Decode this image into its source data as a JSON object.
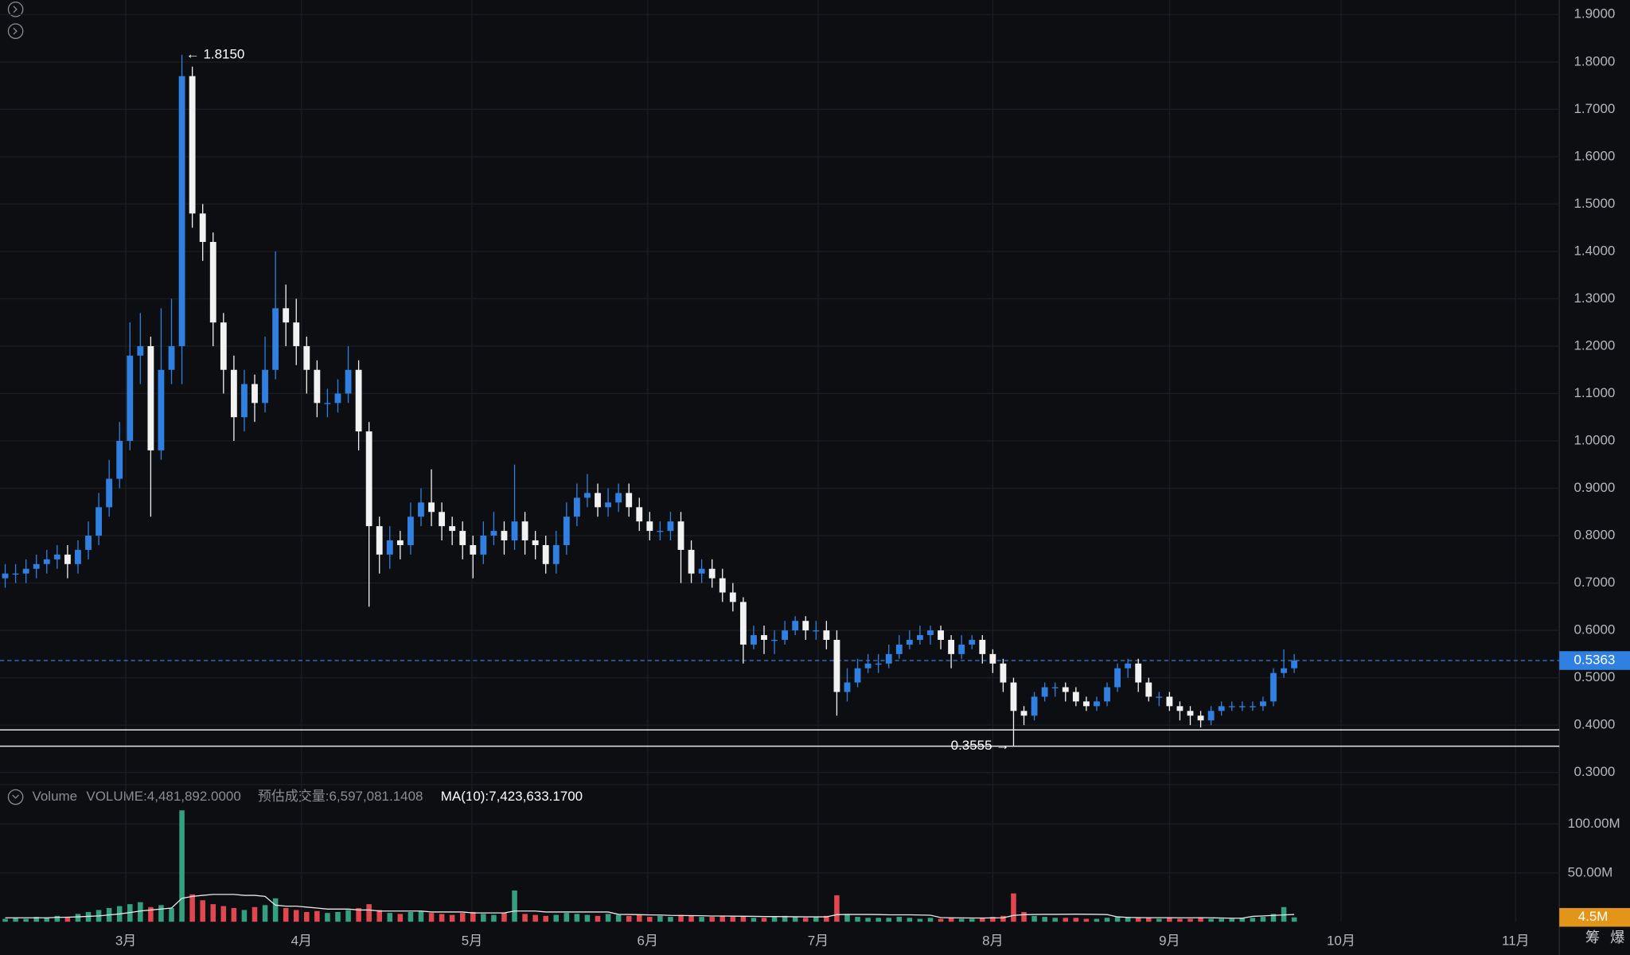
{
  "chart_data": [
    {
      "type": "candlestick",
      "open": [
        0.71,
        0.72,
        0.72,
        0.73,
        0.74,
        0.75,
        0.76,
        0.74,
        0.77,
        0.8,
        0.86,
        0.92,
        1.0,
        1.18,
        1.2,
        0.98,
        1.15,
        1.2,
        1.77,
        1.48,
        1.42,
        1.25,
        1.15,
        1.05,
        1.12,
        1.08,
        1.15,
        1.28,
        1.25,
        1.2,
        1.15,
        1.08,
        1.08,
        1.1,
        1.15,
        1.02,
        0.82,
        0.76,
        0.79,
        0.78,
        0.84,
        0.87,
        0.85,
        0.82,
        0.81,
        0.78,
        0.76,
        0.8,
        0.81,
        0.79,
        0.83,
        0.79,
        0.78,
        0.74,
        0.78,
        0.84,
        0.88,
        0.89,
        0.86,
        0.87,
        0.89,
        0.86,
        0.83,
        0.81,
        0.81,
        0.83,
        0.77,
        0.72,
        0.73,
        0.71,
        0.68,
        0.66,
        0.57,
        0.59,
        0.58,
        0.58,
        0.6,
        0.62,
        0.6,
        0.6,
        0.58,
        0.47,
        0.49,
        0.52,
        0.53,
        0.53,
        0.55,
        0.57,
        0.58,
        0.59,
        0.6,
        0.58,
        0.55,
        0.57,
        0.58,
        0.55,
        0.53,
        0.49,
        0.43,
        0.42,
        0.46,
        0.48,
        0.48,
        0.47,
        0.45,
        0.44,
        0.45,
        0.48,
        0.52,
        0.53,
        0.49,
        0.46,
        0.46,
        0.44,
        0.43,
        0.42,
        0.41,
        0.43,
        0.44,
        0.44,
        0.44,
        0.44,
        0.45,
        0.51,
        0.52
      ],
      "high": [
        0.74,
        0.74,
        0.75,
        0.76,
        0.77,
        0.78,
        0.78,
        0.79,
        0.83,
        0.89,
        0.96,
        1.04,
        1.25,
        1.27,
        1.22,
        1.28,
        1.3,
        1.815,
        1.79,
        1.5,
        1.44,
        1.27,
        1.18,
        1.15,
        1.14,
        1.22,
        1.4,
        1.33,
        1.3,
        1.22,
        1.17,
        1.11,
        1.13,
        1.2,
        1.17,
        1.04,
        0.84,
        0.82,
        0.81,
        0.87,
        0.9,
        0.94,
        0.87,
        0.84,
        0.83,
        0.8,
        0.83,
        0.85,
        0.83,
        0.95,
        0.85,
        0.81,
        0.8,
        0.81,
        0.87,
        0.91,
        0.93,
        0.91,
        0.9,
        0.91,
        0.91,
        0.88,
        0.85,
        0.83,
        0.85,
        0.85,
        0.79,
        0.75,
        0.75,
        0.73,
        0.7,
        0.67,
        0.61,
        0.61,
        0.6,
        0.62,
        0.63,
        0.63,
        0.62,
        0.62,
        0.6,
        0.52,
        0.54,
        0.55,
        0.55,
        0.57,
        0.59,
        0.6,
        0.61,
        0.61,
        0.61,
        0.59,
        0.59,
        0.59,
        0.59,
        0.56,
        0.54,
        0.5,
        0.44,
        0.47,
        0.49,
        0.49,
        0.49,
        0.48,
        0.46,
        0.46,
        0.49,
        0.53,
        0.54,
        0.54,
        0.5,
        0.47,
        0.47,
        0.45,
        0.44,
        0.43,
        0.44,
        0.45,
        0.45,
        0.45,
        0.45,
        0.46,
        0.52,
        0.56,
        0.55
      ],
      "low": [
        0.69,
        0.7,
        0.7,
        0.71,
        0.72,
        0.73,
        0.71,
        0.72,
        0.75,
        0.78,
        0.84,
        0.9,
        0.98,
        1.12,
        0.84,
        0.96,
        1.12,
        1.12,
        1.45,
        1.38,
        1.2,
        1.1,
        1.0,
        1.02,
        1.04,
        1.06,
        1.13,
        1.2,
        1.16,
        1.1,
        1.05,
        1.05,
        1.06,
        1.08,
        0.98,
        0.65,
        0.72,
        0.73,
        0.75,
        0.76,
        0.82,
        0.82,
        0.79,
        0.78,
        0.75,
        0.71,
        0.74,
        0.78,
        0.76,
        0.77,
        0.76,
        0.75,
        0.72,
        0.72,
        0.76,
        0.82,
        0.86,
        0.84,
        0.84,
        0.85,
        0.84,
        0.81,
        0.79,
        0.79,
        0.79,
        0.7,
        0.7,
        0.7,
        0.69,
        0.66,
        0.64,
        0.53,
        0.56,
        0.55,
        0.55,
        0.57,
        0.59,
        0.58,
        0.58,
        0.56,
        0.42,
        0.45,
        0.48,
        0.51,
        0.51,
        0.52,
        0.54,
        0.56,
        0.57,
        0.57,
        0.56,
        0.52,
        0.54,
        0.56,
        0.53,
        0.51,
        0.47,
        0.3555,
        0.4,
        0.41,
        0.45,
        0.46,
        0.45,
        0.44,
        0.43,
        0.43,
        0.44,
        0.47,
        0.5,
        0.47,
        0.45,
        0.44,
        0.43,
        0.41,
        0.4,
        0.395,
        0.4,
        0.42,
        0.43,
        0.43,
        0.43,
        0.43,
        0.44,
        0.5,
        0.51
      ],
      "close": [
        0.72,
        0.72,
        0.73,
        0.74,
        0.75,
        0.76,
        0.74,
        0.77,
        0.8,
        0.86,
        0.92,
        1.0,
        1.18,
        1.2,
        0.98,
        1.15,
        1.2,
        1.77,
        1.48,
        1.42,
        1.25,
        1.15,
        1.05,
        1.12,
        1.08,
        1.15,
        1.28,
        1.25,
        1.2,
        1.15,
        1.08,
        1.08,
        1.1,
        1.15,
        1.02,
        0.82,
        0.76,
        0.79,
        0.78,
        0.84,
        0.87,
        0.85,
        0.82,
        0.81,
        0.78,
        0.76,
        0.8,
        0.81,
        0.79,
        0.83,
        0.79,
        0.78,
        0.74,
        0.78,
        0.84,
        0.88,
        0.89,
        0.86,
        0.87,
        0.89,
        0.86,
        0.83,
        0.81,
        0.81,
        0.83,
        0.77,
        0.72,
        0.73,
        0.71,
        0.68,
        0.66,
        0.57,
        0.59,
        0.58,
        0.58,
        0.6,
        0.62,
        0.6,
        0.6,
        0.58,
        0.47,
        0.49,
        0.52,
        0.53,
        0.53,
        0.55,
        0.57,
        0.58,
        0.59,
        0.6,
        0.58,
        0.55,
        0.57,
        0.58,
        0.55,
        0.53,
        0.49,
        0.43,
        0.42,
        0.46,
        0.48,
        0.48,
        0.47,
        0.45,
        0.44,
        0.45,
        0.48,
        0.52,
        0.53,
        0.49,
        0.46,
        0.46,
        0.44,
        0.43,
        0.42,
        0.41,
        0.43,
        0.44,
        0.44,
        0.44,
        0.44,
        0.45,
        0.51,
        0.52,
        0.5363
      ],
      "up_color": "#2f80e0",
      "down_color": "#f2f2f2",
      "xlim": [
        -0.5,
        149.5
      ],
      "xticks": [
        {
          "value": 11.6,
          "label": "3月"
        },
        {
          "value": 28.5,
          "label": "4月"
        },
        {
          "value": 44.9,
          "label": "5月"
        },
        {
          "value": 61.8,
          "label": "6月"
        },
        {
          "value": 78.2,
          "label": "7月"
        },
        {
          "value": 95,
          "label": "8月"
        },
        {
          "value": 112,
          "label": "9月"
        },
        {
          "value": 128.5,
          "label": "10月"
        },
        {
          "value": 145.3,
          "label": "11月"
        }
      ],
      "ylim": [
        0.2745,
        1.9307
      ],
      "yticks": [
        {
          "value": 0.3,
          "label": "0.3000"
        },
        {
          "value": 0.4,
          "label": "0.4000"
        },
        {
          "value": 0.5,
          "label": "0.5000"
        },
        {
          "value": 0.6,
          "label": "0.6000"
        },
        {
          "value": 0.7,
          "label": "0.7000"
        },
        {
          "value": 0.8,
          "label": "0.8000"
        },
        {
          "value": 0.9,
          "label": "0.9000"
        },
        {
          "value": 1.0,
          "label": "1.0000"
        },
        {
          "value": 1.1,
          "label": "1.1000"
        },
        {
          "value": 1.2,
          "label": "1.2000"
        },
        {
          "value": 1.3,
          "label": "1.3000"
        },
        {
          "value": 1.4,
          "label": "1.4000"
        },
        {
          "value": 1.5,
          "label": "1.5000"
        },
        {
          "value": 1.6,
          "label": "1.6000"
        },
        {
          "value": 1.7,
          "label": "1.7000"
        },
        {
          "value": 1.8,
          "label": "1.8000"
        },
        {
          "value": 1.9,
          "label": "1.9000"
        }
      ],
      "grid": true,
      "max_label": {
        "value": 1.815,
        "label": "← 1.8150"
      },
      "min_label": {
        "value": 0.3555,
        "label": "0.3555 →"
      },
      "hlines": [
        0.39,
        0.3555
      ],
      "current_price": 0.5363,
      "current_color": "#2f80e0"
    },
    {
      "type": "bar",
      "legend": [
        "Volume",
        "VOLUME:4,481,892.0000",
        "预估成交量:6,597,081.1408",
        "MA(10):7,423,633.1700"
      ],
      "values": [
        3000000.0,
        4000000.0,
        3000000.0,
        5000000.0,
        4000000.0,
        6000000.0,
        5000000.0,
        8000000.0,
        10000000.0,
        12000000.0,
        14000000.0,
        16000000.0,
        18000000.0,
        20000000.0,
        15000000.0,
        17000000.0,
        14000000.0,
        114000000.0,
        28000000.0,
        22000000.0,
        18000000.0,
        16000000.0,
        14000000.0,
        12000000.0,
        15000000.0,
        17000000.0,
        24000000.0,
        14000000.0,
        12000000.0,
        10000000.0,
        11000000.0,
        9000000.0,
        10000000.0,
        12000000.0,
        14000000.0,
        18000000.0,
        12000000.0,
        9000000.0,
        8000000.0,
        10000000.0,
        11000000.0,
        9000000.0,
        8000000.0,
        7000000.0,
        9000000.0,
        10000000.0,
        8000000.0,
        7000000.0,
        9000000.0,
        32000000.0,
        8000000.0,
        7000000.0,
        6000000.0,
        7000000.0,
        9000000.0,
        8000000.0,
        7000000.0,
        6000000.0,
        8000000.0,
        7000000.0,
        6000000.0,
        7000000.0,
        5000000.0,
        6000000.0,
        5000000.0,
        7000000.0,
        6000000.0,
        5000000.0,
        5000000.0,
        6000000.0,
        5000000.0,
        6000000.0,
        4000000.0,
        4000000.0,
        5000000.0,
        6000000.0,
        5000000.0,
        4000000.0,
        5000000.0,
        6000000.0,
        27000000.0,
        8000000.0,
        5000000.0,
        4000000.0,
        4000000.0,
        4000000.0,
        5000000.0,
        4000000.0,
        3000000.0,
        4000000.0,
        3000000.0,
        4000000.0,
        3000000.0,
        3000000.0,
        4000000.0,
        5000000.0,
        6000000.0,
        29000000.0,
        10000000.0,
        6000000.0,
        5000000.0,
        4000000.0,
        4000000.0,
        4000000.0,
        3000000.0,
        3000000.0,
        4000000.0,
        5000000.0,
        5000000.0,
        4000000.0,
        4000000.0,
        3000000.0,
        4000000.0,
        3000000.0,
        3000000.0,
        4000000.0,
        3000000.0,
        3000000.0,
        3000000.0,
        4000000.0,
        4000000.0,
        5000000.0,
        8000000.0,
        15000000.0,
        4481892
      ],
      "ma10": [
        4000000.0,
        4000000.0,
        4000000.0,
        4000000.0,
        4000000.0,
        4500000.0,
        4700000.0,
        5000000.0,
        5500000.0,
        6000000.0,
        7000000.0,
        8000000.0,
        9500000.0,
        11000000.0,
        12000000.0,
        13000000.0,
        14000000.0,
        24000000.0,
        26000000.0,
        27000000.0,
        28000000.0,
        28000000.0,
        28000000.0,
        27000000.0,
        27000000.0,
        26000000.0,
        17000000.0,
        16000000.0,
        16000000.0,
        15000000.0,
        14000000.0,
        13000000.0,
        13000000.0,
        13000000.0,
        12000000.0,
        12000000.0,
        11000000.0,
        11000000.0,
        11000000.0,
        11000000.0,
        11000000.0,
        10000000.0,
        10000000.0,
        10000000.0,
        10000000.0,
        9000000.0,
        9000000.0,
        9000000.0,
        9000000.0,
        11000000.0,
        11000000.0,
        11000000.0,
        10000000.0,
        10000000.0,
        10000000.0,
        10000000.0,
        10000000.0,
        10000000.0,
        10000000.0,
        7600000.0,
        7400000.0,
        7200000.0,
        7000000.0,
        6900000.0,
        6500000.0,
        6400000.0,
        6300000.0,
        6200000.0,
        5900000.0,
        5800000.0,
        5700000.0,
        5600000.0,
        5500000.0,
        5300000.0,
        5300000.0,
        5200000.0,
        5100000.0,
        5000000.0,
        5000000.0,
        5000000.0,
        7200000.0,
        7400000.0,
        7400000.0,
        7400000.0,
        7300000.0,
        7100000.0,
        7100000.0,
        7100000.0,
        6900000.0,
        6700000.0,
        4300000.0,
        4000000.0,
        3900000.0,
        3800000.0,
        3800000.0,
        3900000.0,
        4000000.0,
        6500000.0,
        7200000.0,
        7400000.0,
        7600000.0,
        7600000.0,
        7700000.0,
        7800000.0,
        7700000.0,
        7500000.0,
        7300000.0,
        5000000.0,
        4500000.0,
        4300000.0,
        4200000.0,
        4100000.0,
        4100000.0,
        4000000.0,
        4000000.0,
        4100000.0,
        4000000.0,
        3800000.0,
        3600000.0,
        3600000.0,
        5500000.0,
        6000000.0,
        6500000.0,
        7000000.0,
        7423633.17
      ],
      "up_color": "#35a07f",
      "down_color": "#e2474f",
      "ma_color": "#e8e8e8",
      "ylim": [
        0,
        140400000
      ],
      "yticks": [
        {
          "value": 50000000,
          "label": "50.00M"
        },
        {
          "value": 100000000,
          "label": "100.00M"
        }
      ],
      "current": {
        "value": 4481892,
        "label": "4.5M"
      },
      "current_color": "#e3951a"
    }
  ],
  "toolbar": [
    "筹",
    "爆"
  ]
}
